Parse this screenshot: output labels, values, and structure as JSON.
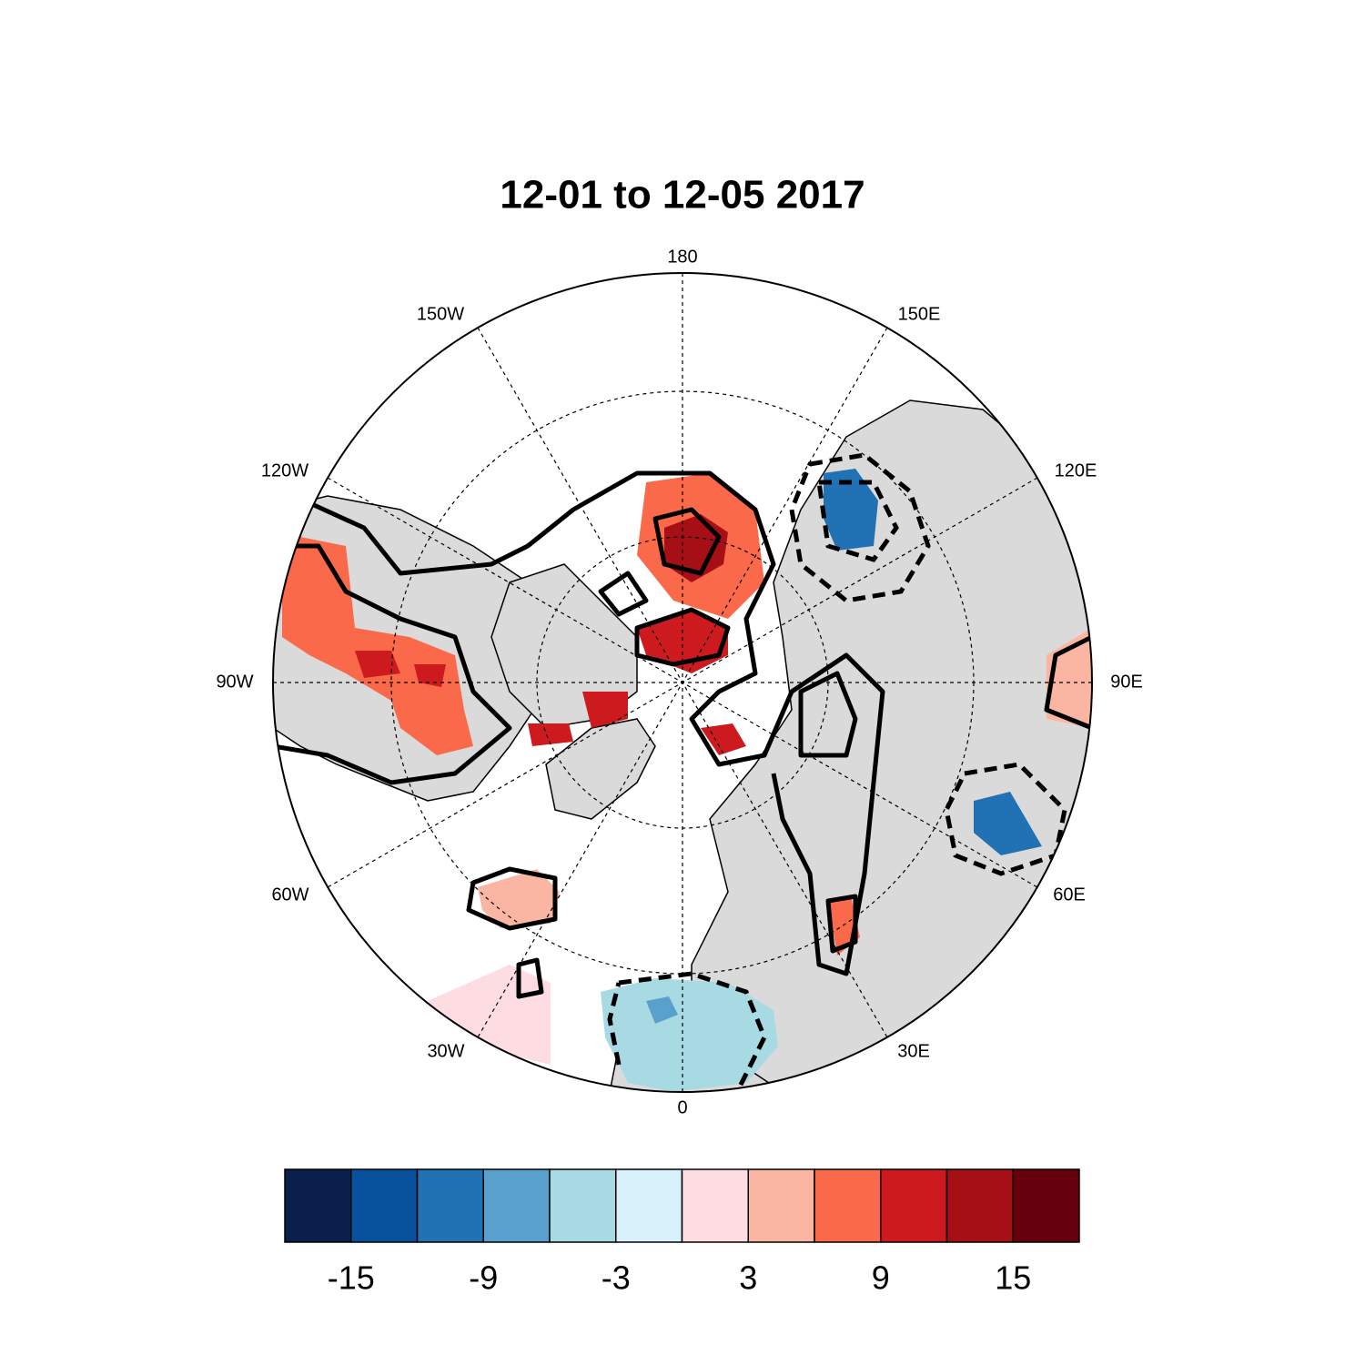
{
  "title": "12-01 to 12-05 2017",
  "longitude_labels": [
    "180",
    "150E",
    "120E",
    "90E",
    "60E",
    "30E",
    "0",
    "30W",
    "60W",
    "90W",
    "120W",
    "150W"
  ],
  "colorbar": {
    "colors": [
      "#0b1f4b",
      "#08519c",
      "#2171b5",
      "#5aa0cc",
      "#a8dae3",
      "#d8f1fa",
      "#fddde2",
      "#fab6a2",
      "#fa6a4a",
      "#cc1a1f",
      "#a50f15",
      "#67000d"
    ],
    "xlim": [
      -18,
      18
    ],
    "xticks": [
      -15,
      -9,
      -3,
      3,
      9,
      15
    ]
  }
}
